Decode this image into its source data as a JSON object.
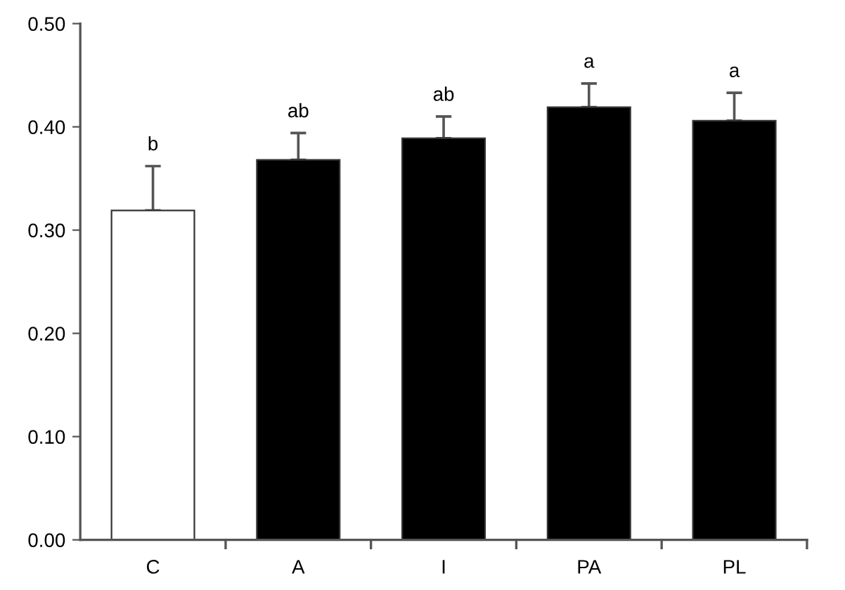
{
  "chart_data": {
    "type": "bar",
    "categories": [
      "C",
      "A",
      "I",
      "PA",
      "PL"
    ],
    "values": [
      0.319,
      0.368,
      0.389,
      0.419,
      0.406
    ],
    "colors": [
      "#ffffff",
      "#000000",
      "#000000",
      "#000000",
      "#000000"
    ],
    "errors": [
      [
        0.319,
        0.362
      ],
      [
        0.368,
        0.394
      ],
      [
        0.389,
        0.41
      ],
      [
        0.419,
        0.442
      ],
      [
        0.406,
        0.433
      ]
    ],
    "ylim": [
      0,
      0.5
    ],
    "yticks": [
      {
        "value": 0,
        "label": "0.00"
      },
      {
        "value": 0.1,
        "label": "0.10"
      },
      {
        "value": 0.2,
        "label": "0.20"
      },
      {
        "value": 0.3,
        "label": "0.30"
      },
      {
        "value": 0.4,
        "label": "0.40"
      },
      {
        "value": 0.5,
        "label": "0.50"
      }
    ],
    "annotations": [
      "b",
      "ab",
      "ab",
      "a",
      "a"
    ],
    "grid": false,
    "legend": false
  }
}
